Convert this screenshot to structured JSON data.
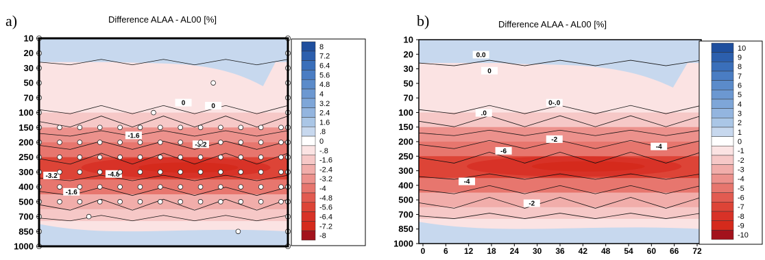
{
  "chart_data": [
    {
      "type": "heatmap",
      "panel_label": "a)",
      "title": "Difference ALAA - AL00 [%]",
      "xlabel": "",
      "ylabel": "",
      "y_ticks": [
        "10",
        "20",
        "30",
        "50",
        "70",
        "100",
        "150",
        "200",
        "250",
        "300",
        "400",
        "500",
        "700",
        "850",
        "1000"
      ],
      "x_ticks": [],
      "colorbar": {
        "levels": [
          "8",
          "7.2",
          "6.4",
          "5.6",
          "4.8",
          "4",
          "3.2",
          "2.4",
          "1.6",
          ".8",
          "0",
          "-.8",
          "-1.6",
          "-2.4",
          "-3.2",
          "-4",
          "-4.8",
          "-5.6",
          "-6.4",
          "-7.2",
          "-8"
        ],
        "colors": [
          "#1f4f9e",
          "#2c5fad",
          "#3a6fba",
          "#4a7dc3",
          "#5b8bca",
          "#6c98d1",
          "#7ea6d8",
          "#93b5df",
          "#aac6e6",
          "#c7d8ee",
          "#ffffff",
          "#fbe3e3",
          "#f6c8c7",
          "#f1adaa",
          "#ec918c",
          "#e7766e",
          "#e25b51",
          "#dd4437",
          "#d83227",
          "#d52a1c",
          "#a3121c"
        ]
      },
      "contour_labels": [
        "0",
        "0",
        "-1.6",
        "-3.2",
        "-3.2",
        "-4.8",
        "-1.6"
      ],
      "grid_points": "data markers (open circles) at model levels",
      "field_summary": "Negative differences (reds) concentrated between 150 and 500 hPa, minimum about -6.4 near 250 hPa; weak positive (light blue) above 100 hPa and near surface."
    },
    {
      "type": "heatmap",
      "panel_label": "b)",
      "title": "Difference ALAA - AL00 [%]",
      "xlabel": "",
      "ylabel": "",
      "y_ticks": [
        "10",
        "20",
        "30",
        "50",
        "70",
        "100",
        "150",
        "200",
        "250",
        "300",
        "400",
        "500",
        "700",
        "850",
        "1000"
      ],
      "x_ticks": [
        "0",
        "6",
        "12",
        "18",
        "24",
        "30",
        "36",
        "42",
        "48",
        "54",
        "60",
        "66",
        "72"
      ],
      "colorbar": {
        "levels": [
          "10",
          "9",
          "8",
          "7",
          "6",
          "5",
          "4",
          "3",
          "2",
          "1",
          "0",
          "-1",
          "-2",
          "-3",
          "-4",
          "-5",
          "-6",
          "-7",
          "-8",
          "-9",
          "-10"
        ],
        "colors": [
          "#1f4f9e",
          "#2c5fad",
          "#3a6fba",
          "#4a7dc3",
          "#5b8bca",
          "#6c98d1",
          "#7ea6d8",
          "#93b5df",
          "#aac6e6",
          "#c7d8ee",
          "#ffffff",
          "#fbe3e3",
          "#f6c8c7",
          "#f1adaa",
          "#ec918c",
          "#e7766e",
          "#e25b51",
          "#dd4437",
          "#d83227",
          "#d52a1c",
          "#a3121c"
        ]
      },
      "contour_labels": [
        "0.0",
        "0",
        "0-.0",
        ".0",
        "-2",
        "-6",
        "-4",
        "-4",
        "-2"
      ],
      "field_summary": "Negative differences between 150 and 500 hPa across forecast hours 0-72, minimum about -7 near 250 hPa; weak positive above 100 hPa."
    }
  ]
}
